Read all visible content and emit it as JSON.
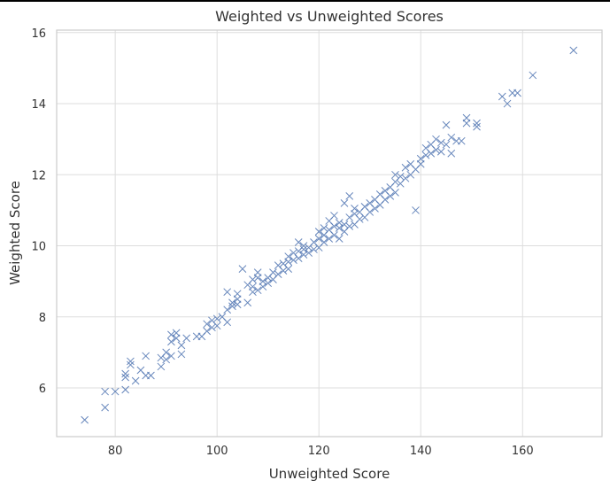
{
  "chart_data": {
    "type": "scatter",
    "title": "Weighted vs Unweighted Scores",
    "xlabel": "Unweighted Score",
    "ylabel": "Weighted Score",
    "xlim": [
      68.5,
      175.6
    ],
    "ylim": [
      4.63,
      16.07
    ],
    "xticks": [
      80,
      100,
      120,
      140,
      160
    ],
    "yticks": [
      6,
      8,
      10,
      12,
      14,
      16
    ],
    "grid": true,
    "marker": "x",
    "color": "#4c72b0",
    "points": [
      [
        74,
        5.1
      ],
      [
        78,
        5.45
      ],
      [
        78,
        5.9
      ],
      [
        80,
        5.9
      ],
      [
        82,
        5.95
      ],
      [
        82,
        6.3
      ],
      [
        82,
        6.4
      ],
      [
        83,
        6.65
      ],
      [
        83,
        6.75
      ],
      [
        84,
        6.2
      ],
      [
        85,
        6.5
      ],
      [
        86,
        6.35
      ],
      [
        86,
        6.9
      ],
      [
        87,
        6.35
      ],
      [
        89,
        6.6
      ],
      [
        89,
        6.85
      ],
      [
        90,
        6.8
      ],
      [
        90,
        7.0
      ],
      [
        91,
        6.9
      ],
      [
        91,
        7.3
      ],
      [
        91,
        7.5
      ],
      [
        92,
        7.4
      ],
      [
        92,
        7.55
      ],
      [
        93,
        6.95
      ],
      [
        93,
        7.2
      ],
      [
        94,
        7.4
      ],
      [
        96,
        7.45
      ],
      [
        97,
        7.45
      ],
      [
        98,
        7.6
      ],
      [
        98,
        7.8
      ],
      [
        99,
        7.7
      ],
      [
        99,
        7.9
      ],
      [
        100,
        7.75
      ],
      [
        100,
        7.95
      ],
      [
        101,
        8.0
      ],
      [
        102,
        7.85
      ],
      [
        102,
        8.2
      ],
      [
        102,
        8.7
      ],
      [
        103,
        8.3
      ],
      [
        103,
        8.4
      ],
      [
        104,
        8.35
      ],
      [
        104,
        8.5
      ],
      [
        104,
        8.65
      ],
      [
        105,
        9.35
      ],
      [
        106,
        8.4
      ],
      [
        106,
        8.9
      ],
      [
        107,
        8.7
      ],
      [
        107,
        8.85
      ],
      [
        107,
        9.05
      ],
      [
        108,
        8.75
      ],
      [
        108,
        9.1
      ],
      [
        108,
        9.25
      ],
      [
        109,
        8.85
      ],
      [
        109,
        9.0
      ],
      [
        110,
        8.95
      ],
      [
        110,
        9.1
      ],
      [
        111,
        9.05
      ],
      [
        111,
        9.25
      ],
      [
        112,
        9.2
      ],
      [
        112,
        9.45
      ],
      [
        113,
        9.3
      ],
      [
        113,
        9.5
      ],
      [
        114,
        9.35
      ],
      [
        114,
        9.55
      ],
      [
        114,
        9.7
      ],
      [
        115,
        9.6
      ],
      [
        115,
        9.8
      ],
      [
        116,
        9.65
      ],
      [
        116,
        9.85
      ],
      [
        116,
        10.1
      ],
      [
        117,
        9.75
      ],
      [
        117,
        9.9
      ],
      [
        117,
        10.0
      ],
      [
        118,
        9.8
      ],
      [
        118,
        9.95
      ],
      [
        119,
        9.9
      ],
      [
        119,
        10.1
      ],
      [
        120,
        9.95
      ],
      [
        120,
        10.2
      ],
      [
        120,
        10.4
      ],
      [
        121,
        10.1
      ],
      [
        121,
        10.3
      ],
      [
        121,
        10.5
      ],
      [
        122,
        10.2
      ],
      [
        122,
        10.45
      ],
      [
        122,
        10.7
      ],
      [
        123,
        10.3
      ],
      [
        123,
        10.55
      ],
      [
        123,
        10.85
      ],
      [
        124,
        10.2
      ],
      [
        124,
        10.5
      ],
      [
        124,
        10.65
      ],
      [
        125,
        10.4
      ],
      [
        125,
        10.6
      ],
      [
        125,
        11.2
      ],
      [
        126,
        10.55
      ],
      [
        126,
        10.8
      ],
      [
        126,
        11.4
      ],
      [
        127,
        10.6
      ],
      [
        127,
        10.9
      ],
      [
        127,
        11.05
      ],
      [
        128,
        10.75
      ],
      [
        128,
        10.95
      ],
      [
        129,
        10.8
      ],
      [
        129,
        11.1
      ],
      [
        130,
        10.95
      ],
      [
        130,
        11.2
      ],
      [
        131,
        11.05
      ],
      [
        131,
        11.3
      ],
      [
        132,
        11.15
      ],
      [
        132,
        11.45
      ],
      [
        133,
        11.3
      ],
      [
        133,
        11.55
      ],
      [
        134,
        11.4
      ],
      [
        134,
        11.65
      ],
      [
        135,
        11.5
      ],
      [
        135,
        11.8
      ],
      [
        135,
        12.0
      ],
      [
        136,
        11.75
      ],
      [
        136,
        11.95
      ],
      [
        137,
        11.9
      ],
      [
        137,
        12.2
      ],
      [
        138,
        12.0
      ],
      [
        138,
        12.3
      ],
      [
        139,
        12.15
      ],
      [
        139,
        11.0
      ],
      [
        140,
        12.3
      ],
      [
        140,
        12.45
      ],
      [
        141,
        12.55
      ],
      [
        141,
        12.75
      ],
      [
        142,
        12.6
      ],
      [
        142,
        12.85
      ],
      [
        143,
        12.7
      ],
      [
        143,
        13.0
      ],
      [
        144,
        12.65
      ],
      [
        144,
        12.9
      ],
      [
        145,
        12.85
      ],
      [
        145,
        13.4
      ],
      [
        146,
        12.6
      ],
      [
        146,
        13.05
      ],
      [
        147,
        12.95
      ],
      [
        148,
        12.95
      ],
      [
        149,
        13.45
      ],
      [
        149,
        13.6
      ],
      [
        151,
        13.35
      ],
      [
        151,
        13.45
      ],
      [
        156,
        14.2
      ],
      [
        157,
        14.0
      ],
      [
        158,
        14.3
      ],
      [
        159,
        14.3
      ],
      [
        162,
        14.8
      ],
      [
        170,
        15.5
      ]
    ]
  }
}
